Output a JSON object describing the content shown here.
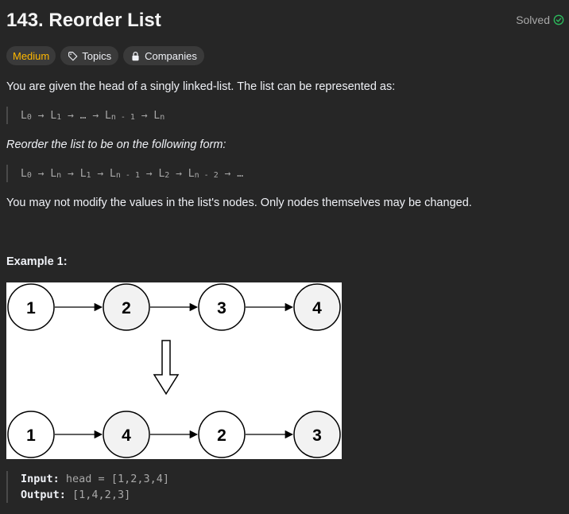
{
  "problem": {
    "title": "143. Reorder List",
    "status": "Solved",
    "difficulty": "Medium",
    "topics_label": "Topics",
    "companies_label": "Companies"
  },
  "description": {
    "intro": "You are given the head of a singly linked-list. The list can be represented as:",
    "formula1": [
      {
        "t": "L",
        "s": "0"
      },
      {
        "t": " → "
      },
      {
        "t": "L",
        "s": "1"
      },
      {
        "t": " → … → "
      },
      {
        "t": "L",
        "s": "n - 1"
      },
      {
        "t": " → "
      },
      {
        "t": "L",
        "s": "n"
      }
    ],
    "reorder_text": "Reorder the list to be on the following form:",
    "formula2": [
      {
        "t": "L",
        "s": "0"
      },
      {
        "t": " → "
      },
      {
        "t": "L",
        "s": "n"
      },
      {
        "t": " → "
      },
      {
        "t": "L",
        "s": "1"
      },
      {
        "t": " → "
      },
      {
        "t": "L",
        "s": "n - 1"
      },
      {
        "t": " → "
      },
      {
        "t": "L",
        "s": "2"
      },
      {
        "t": " → "
      },
      {
        "t": "L",
        "s": "n - 2"
      },
      {
        "t": " → …"
      }
    ],
    "constraint_text": "You may not modify the values in the list's nodes. Only nodes themselves may be changed."
  },
  "example1": {
    "heading": "Example 1:",
    "diagram_top": [
      "1",
      "2",
      "3",
      "4"
    ],
    "diagram_bottom": [
      "1",
      "4",
      "2",
      "3"
    ],
    "input_label": "Input:",
    "input_value": "head = [1,2,3,4]",
    "output_label": "Output:",
    "output_value": "[1,4,2,3]"
  },
  "colors": {
    "accent_green": "#2cbb5d",
    "difficulty_medium": "#ffb800"
  }
}
